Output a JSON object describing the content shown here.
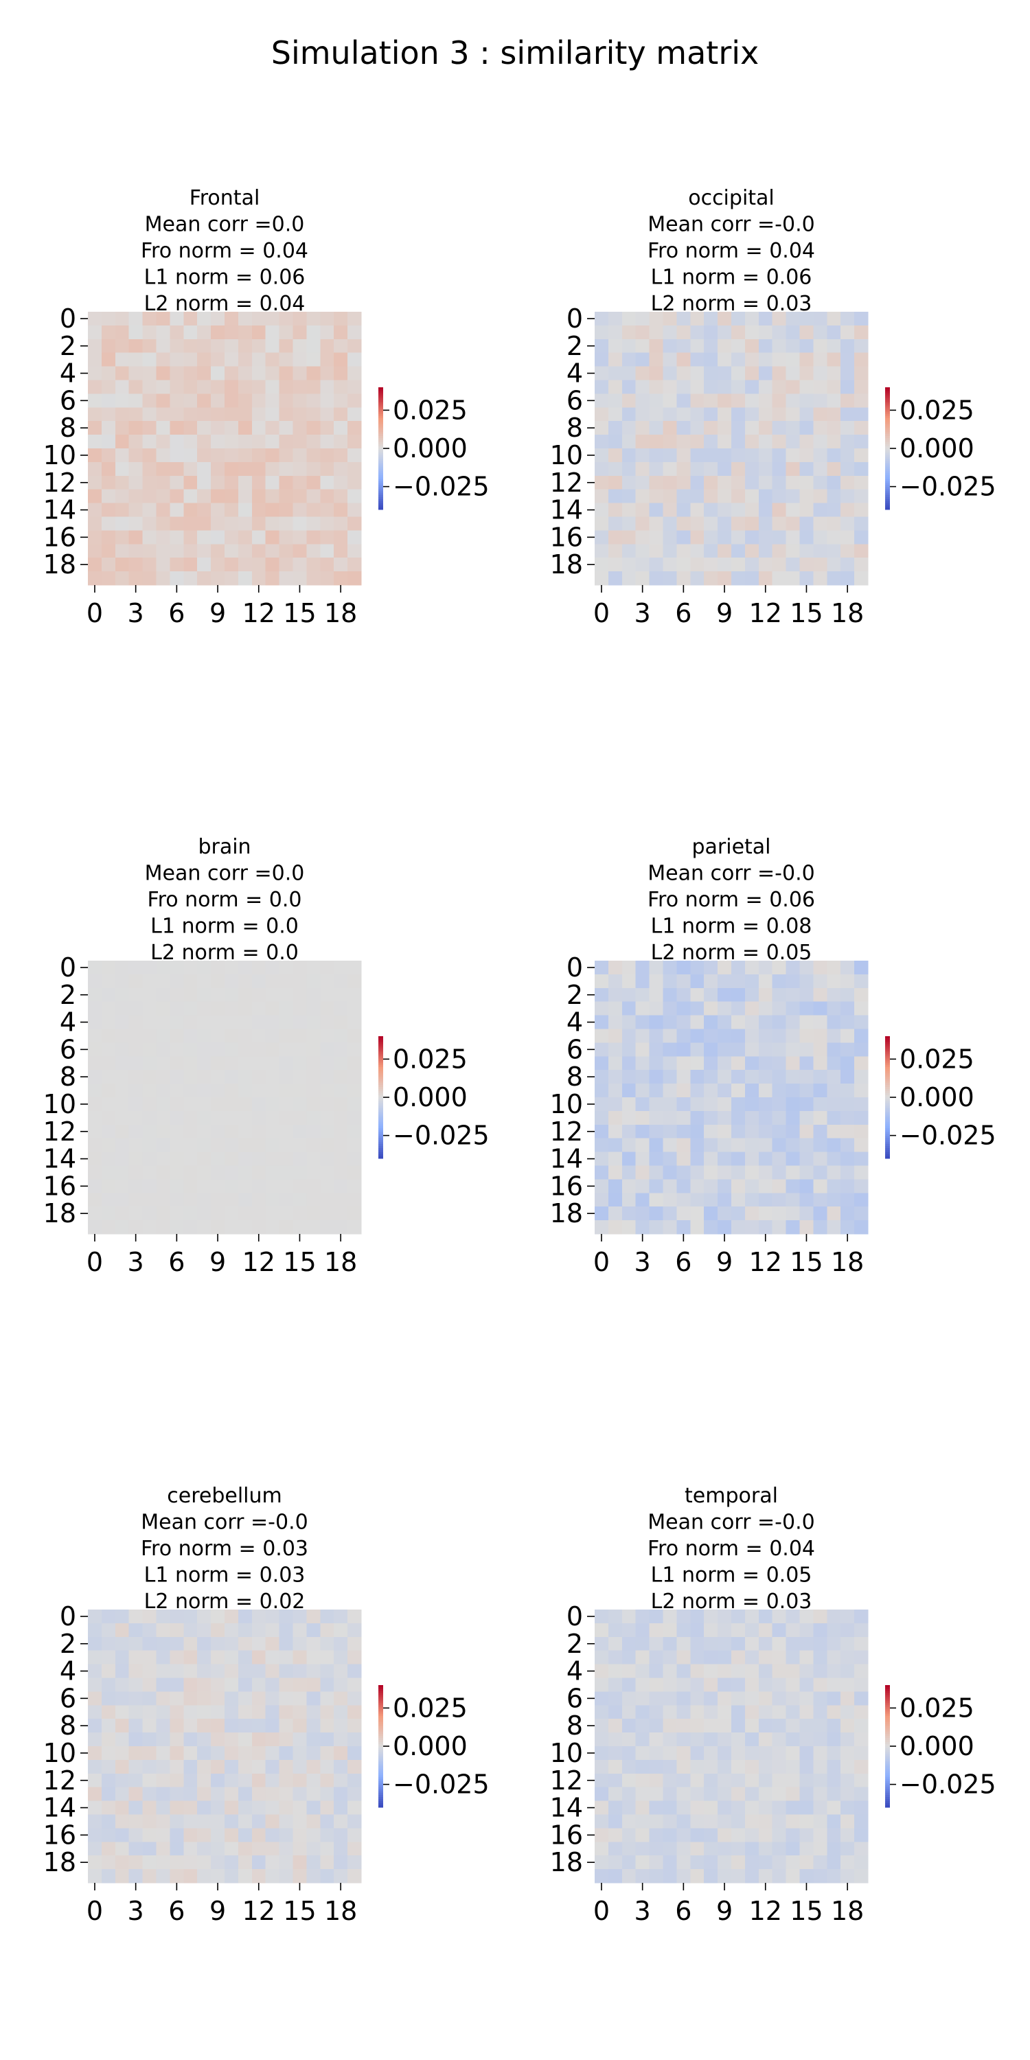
{
  "title": "Simulation  3 : similarity matrix",
  "chart_data": [
    {
      "type": "heatmap",
      "title": "Frontal",
      "stats": [
        "Mean corr =0.0",
        "Fro norm = 0.04",
        "L1 norm = 0.06",
        "L2 norm = 0.04"
      ],
      "n": 20,
      "tint": 0.004,
      "spread": 0.0045,
      "seed": 11,
      "xticks": [
        "0",
        "3",
        "6",
        "9",
        "12",
        "15",
        "18"
      ],
      "yticks": [
        "0",
        "2",
        "4",
        "6",
        "8",
        "10",
        "12",
        "14",
        "16",
        "18"
      ],
      "colorbar": {
        "ticks": [
          "0.025",
          "0.000",
          "−0.025"
        ],
        "range": [
          -0.04,
          0.04
        ],
        "colormap": "coolwarm"
      }
    },
    {
      "type": "heatmap",
      "title": "occipital",
      "stats": [
        "Mean corr =-0.0",
        "Fro norm = 0.04",
        "L1 norm = 0.06",
        "L2 norm = 0.03"
      ],
      "n": 20,
      "tint": -0.001,
      "spread": 0.006,
      "seed": 23,
      "xticks": [
        "0",
        "3",
        "6",
        "9",
        "12",
        "15",
        "18"
      ],
      "yticks": [
        "0",
        "2",
        "4",
        "6",
        "8",
        "10",
        "12",
        "14",
        "16",
        "18"
      ],
      "colorbar": {
        "ticks": [
          "0.025",
          "0.000",
          "−0.025"
        ],
        "range": [
          -0.04,
          0.04
        ],
        "colormap": "coolwarm"
      }
    },
    {
      "type": "heatmap",
      "title": "brain",
      "stats": [
        "Mean corr =0.0",
        "Fro norm = 0.0",
        "L1 norm = 0.0",
        "L2 norm = 0.0"
      ],
      "n": 20,
      "tint": 0.0,
      "spread": 0.0004,
      "seed": 37,
      "xticks": [
        "0",
        "3",
        "6",
        "9",
        "12",
        "15",
        "18"
      ],
      "yticks": [
        "0",
        "2",
        "4",
        "6",
        "8",
        "10",
        "12",
        "14",
        "16",
        "18"
      ],
      "colorbar": {
        "ticks": [
          "0.025",
          "0.000",
          "−0.025"
        ],
        "range": [
          -0.04,
          0.04
        ],
        "colormap": "coolwarm"
      }
    },
    {
      "type": "heatmap",
      "title": "parietal",
      "stats": [
        "Mean corr =-0.0",
        "Fro norm = 0.06",
        "L1 norm = 0.08",
        "L2 norm = 0.05"
      ],
      "n": 20,
      "tint": -0.0045,
      "spread": 0.006,
      "seed": 41,
      "xticks": [
        "0",
        "3",
        "6",
        "9",
        "12",
        "15",
        "18"
      ],
      "yticks": [
        "0",
        "2",
        "4",
        "6",
        "8",
        "10",
        "12",
        "14",
        "16",
        "18"
      ],
      "colorbar": {
        "ticks": [
          "0.025",
          "0.000",
          "−0.025"
        ],
        "range": [
          -0.04,
          0.04
        ],
        "colormap": "coolwarm"
      }
    },
    {
      "type": "heatmap",
      "title": "cerebellum",
      "stats": [
        "Mean corr =-0.0",
        "Fro norm = 0.03",
        "L1 norm = 0.03",
        "L2 norm = 0.02"
      ],
      "n": 20,
      "tint": -0.001,
      "spread": 0.0045,
      "seed": 53,
      "xticks": [
        "0",
        "3",
        "6",
        "9",
        "12",
        "15",
        "18"
      ],
      "yticks": [
        "0",
        "2",
        "4",
        "6",
        "8",
        "10",
        "12",
        "14",
        "16",
        "18"
      ],
      "colorbar": {
        "ticks": [
          "0.025",
          "0.000",
          "−0.025"
        ],
        "range": [
          -0.04,
          0.04
        ],
        "colormap": "coolwarm"
      }
    },
    {
      "type": "heatmap",
      "title": "temporal",
      "stats": [
        "Mean corr =-0.0",
        "Fro norm = 0.04",
        "L1 norm = 0.05",
        "L2 norm = 0.03"
      ],
      "n": 20,
      "tint": -0.0025,
      "spread": 0.004,
      "seed": 67,
      "xticks": [
        "0",
        "3",
        "6",
        "9",
        "12",
        "15",
        "18"
      ],
      "yticks": [
        "0",
        "2",
        "4",
        "6",
        "8",
        "10",
        "12",
        "14",
        "16",
        "18"
      ],
      "colorbar": {
        "ticks": [
          "0.025",
          "0.000",
          "−0.025"
        ],
        "range": [
          -0.04,
          0.04
        ],
        "colormap": "coolwarm"
      }
    }
  ]
}
